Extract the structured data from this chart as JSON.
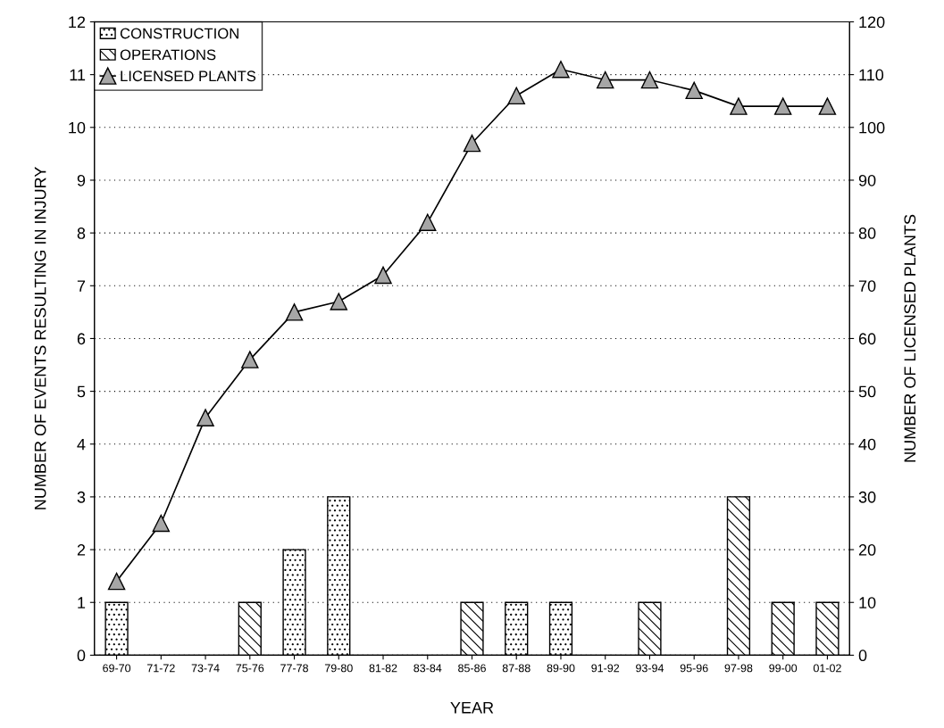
{
  "chart_data": {
    "type": "bar",
    "xlabel": "YEAR",
    "ylabel": "NUMBER OF EVENTS RESULTING IN INJURY",
    "y2label": "NUMBER OF LICENSED PLANTS",
    "categories": [
      "69-70",
      "71-72",
      "73-74",
      "75-76",
      "77-78",
      "79-80",
      "81-82",
      "83-84",
      "85-86",
      "87-88",
      "89-90",
      "91-92",
      "93-94",
      "95-96",
      "97-98",
      "99-00",
      "01-02"
    ],
    "series": [
      {
        "name": "CONSTRUCTION",
        "color": "#000000",
        "values": [
          1,
          null,
          null,
          null,
          2,
          3,
          null,
          null,
          null,
          1,
          1,
          null,
          null,
          null,
          null,
          null,
          null
        ]
      },
      {
        "name": "OPERATIONS",
        "color": "#000000",
        "values": [
          null,
          null,
          null,
          1,
          null,
          null,
          null,
          null,
          1,
          null,
          null,
          null,
          1,
          null,
          3,
          1,
          1
        ]
      },
      {
        "name": "LICENSED PLANTS",
        "type": "line",
        "axis": "y2",
        "color": "#a6a6a6",
        "marker": "triangle",
        "line_style": "solid",
        "values": [
          14,
          25,
          45,
          56,
          65,
          67,
          72,
          82,
          97,
          106,
          111,
          109,
          109,
          107,
          104,
          104,
          104
        ]
      }
    ],
    "ylim": [
      0,
      12
    ],
    "yticks": [
      0,
      1,
      2,
      3,
      4,
      5,
      6,
      7,
      8,
      9,
      10,
      11,
      12
    ],
    "y2lim": [
      0,
      120
    ],
    "y2ticks": [
      0,
      10,
      20,
      30,
      40,
      50,
      60,
      70,
      80,
      90,
      100,
      110,
      120
    ],
    "grid": "y",
    "legend": "top left"
  }
}
